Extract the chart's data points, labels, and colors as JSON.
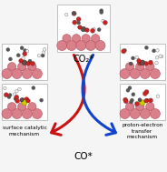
{
  "title": "CO₂*",
  "bottom_label": "CO*",
  "left_label": "surface catalytic\nmechanism",
  "right_label": "proton-electron\ntransfer\nmechanism",
  "arrow_left_color": "#cc1111",
  "arrow_right_color": "#1144cc",
  "bg_color": "#f5f5f5",
  "figsize": [
    1.84,
    1.89
  ],
  "dpi": 100,
  "cu_color": "#d9808a",
  "cu_edge": "#b05060",
  "o_color": "#cc2222",
  "c_color": "#555555",
  "h_color": "#eeeeee",
  "s_color": "#cccc00"
}
